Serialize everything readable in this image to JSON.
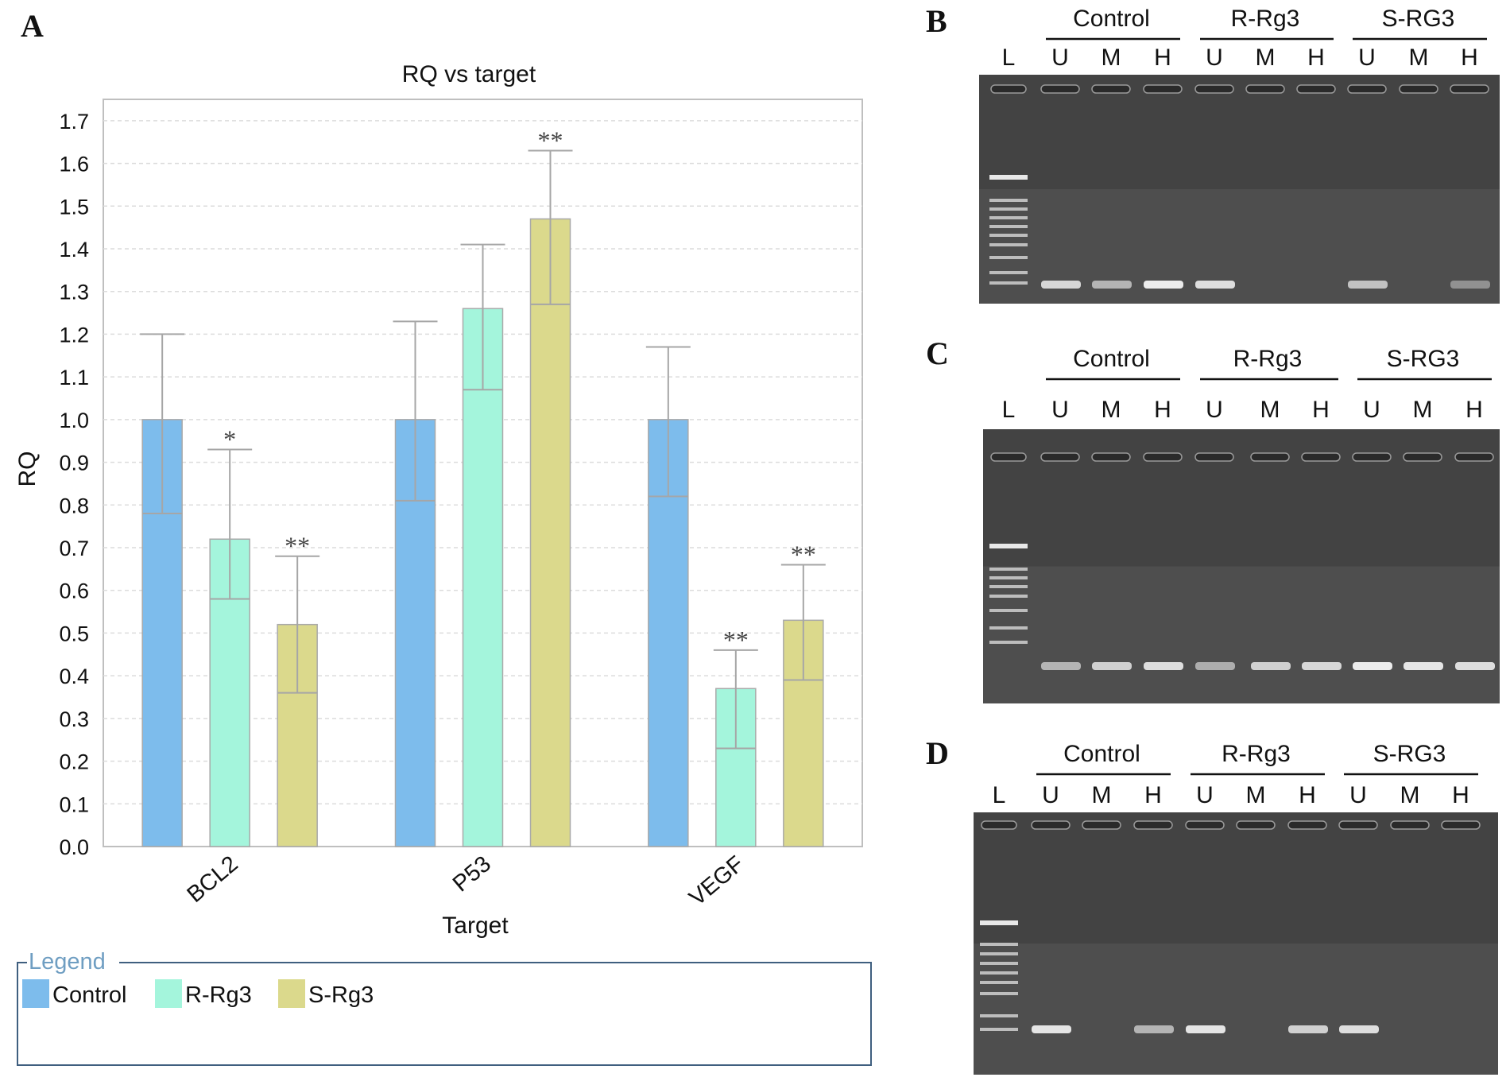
{
  "panels": {
    "A": "A",
    "B": "B",
    "C": "C",
    "D": "D"
  },
  "chart_data": {
    "type": "bar",
    "title": "RQ vs target",
    "xlabel": "Target",
    "ylabel": "RQ",
    "categories": [
      "BCL2",
      "P53",
      "VEGF"
    ],
    "ylim": [
      0.0,
      1.75
    ],
    "yticks": [
      0.0,
      0.1,
      0.2,
      0.3,
      0.4,
      0.5,
      0.6,
      0.7,
      0.8,
      0.9,
      1.0,
      1.1,
      1.2,
      1.3,
      1.4,
      1.5,
      1.6,
      1.7
    ],
    "grid": true,
    "legend_title": "Legend",
    "legend_position": "bottom",
    "series": [
      {
        "name": "Control",
        "color": "#7dbcec",
        "values": [
          1.0,
          1.0,
          1.0
        ],
        "err_low": [
          0.78,
          0.81,
          0.82
        ],
        "err_high": [
          1.2,
          1.23,
          1.17
        ],
        "sig": [
          "",
          "",
          ""
        ]
      },
      {
        "name": "R-Rg3",
        "color": "#a4f5dc",
        "values": [
          0.72,
          1.26,
          0.37
        ],
        "err_low": [
          0.58,
          1.07,
          0.23
        ],
        "err_high": [
          0.93,
          1.41,
          0.46
        ],
        "sig": [
          "*",
          "",
          "**"
        ]
      },
      {
        "name": "S-Rg3",
        "color": "#dbd98c",
        "values": [
          0.52,
          1.47,
          0.53
        ],
        "err_low": [
          0.36,
          1.27,
          0.39
        ],
        "err_high": [
          0.68,
          1.63,
          0.66
        ],
        "sig": [
          "**",
          "**",
          "**"
        ]
      }
    ]
  },
  "gels": [
    {
      "panel": "B",
      "ladder_label": "L",
      "groups": [
        {
          "name": "Control",
          "lanes": [
            "U",
            "M",
            "H"
          ]
        },
        {
          "name": "R-Rg3",
          "lanes": [
            "U",
            "M",
            "H"
          ]
        },
        {
          "name": "S-RG3",
          "lanes": [
            "U",
            "M",
            "H"
          ]
        }
      ],
      "band_intensity": [
        0.75,
        0.5,
        0.9,
        0.8,
        0,
        0,
        0.6,
        0,
        0.25
      ]
    },
    {
      "panel": "C",
      "ladder_label": "L",
      "groups": [
        {
          "name": "Control",
          "lanes": [
            "U",
            "M",
            "H"
          ]
        },
        {
          "name": "R-Rg3",
          "lanes": [
            "U",
            "M",
            "H"
          ]
        },
        {
          "name": "S-RG3",
          "lanes": [
            "U",
            "M",
            "H"
          ]
        }
      ],
      "band_intensity": [
        0.5,
        0.7,
        0.8,
        0.45,
        0.7,
        0.75,
        0.9,
        0.85,
        0.8
      ]
    },
    {
      "panel": "D",
      "ladder_label": "L",
      "groups": [
        {
          "name": "Control",
          "lanes": [
            "U",
            "M",
            "H"
          ]
        },
        {
          "name": "R-Rg3",
          "lanes": [
            "U",
            "M",
            "H"
          ]
        },
        {
          "name": "S-RG3",
          "lanes": [
            "U",
            "M",
            "H"
          ]
        }
      ],
      "band_intensity": [
        0.85,
        0,
        0.5,
        0.85,
        0,
        0.7,
        0.8,
        0,
        0
      ]
    }
  ]
}
